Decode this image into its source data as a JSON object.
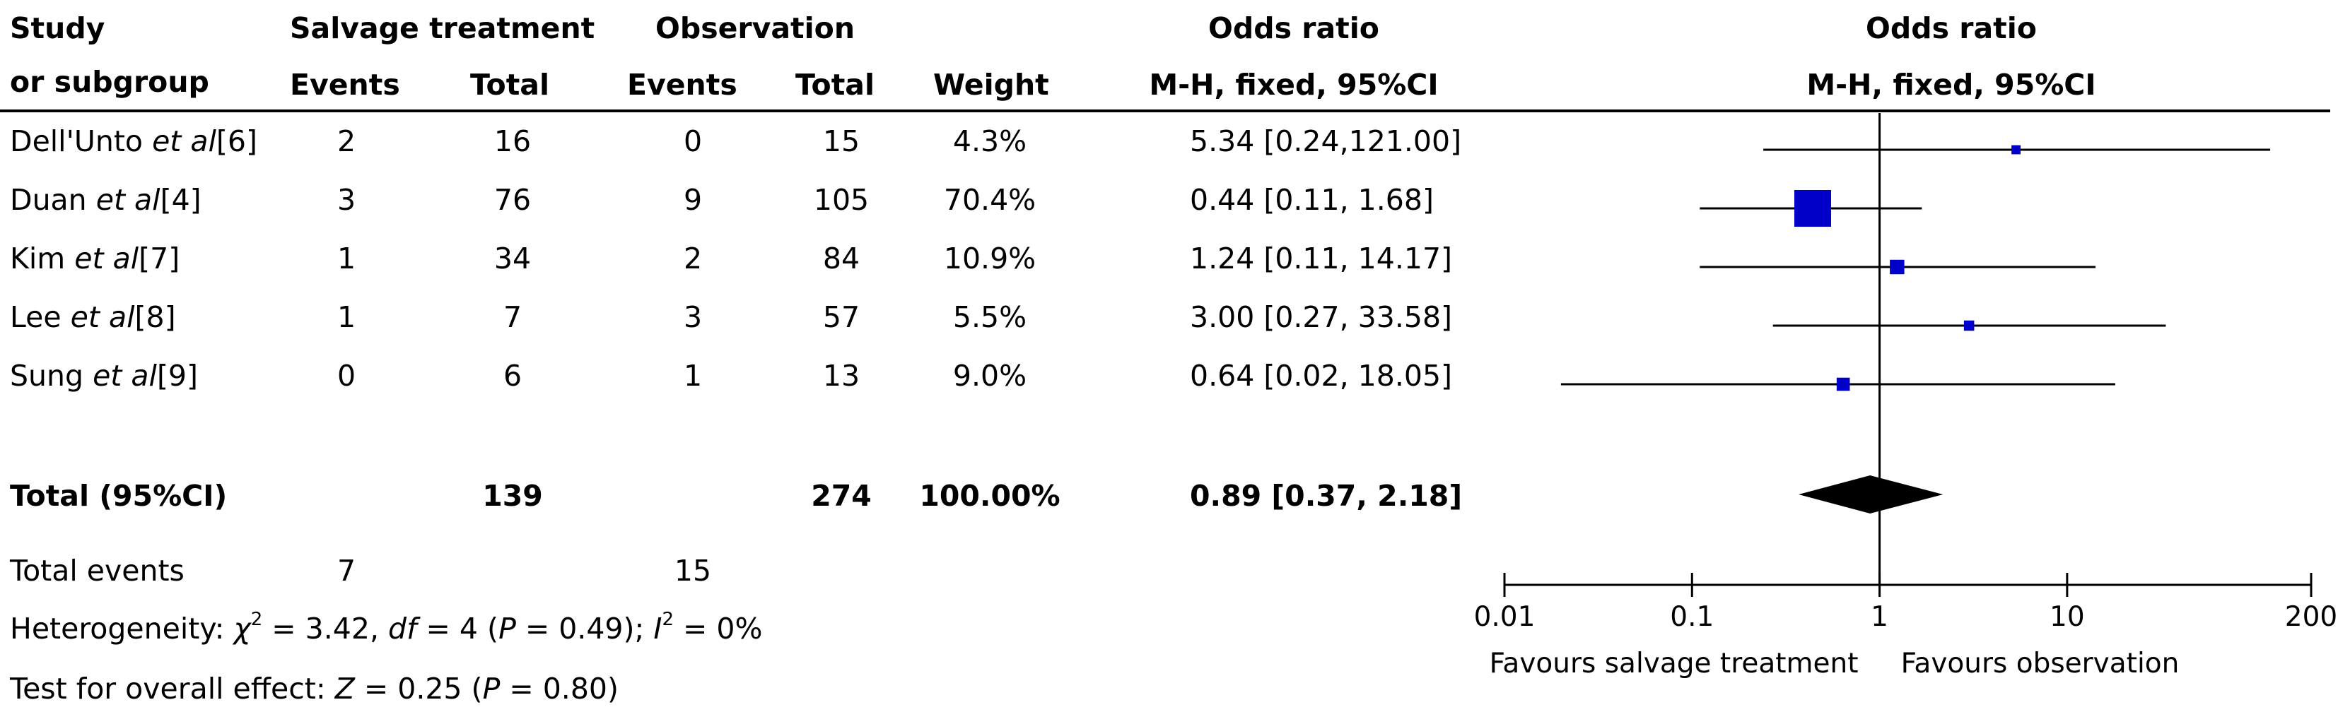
{
  "header": {
    "study_line1": "Study",
    "study_line2": "or subgroup",
    "group1": "Salvage treatment",
    "group2": "Observation",
    "events": "Events",
    "total": "Total",
    "weight": "Weight",
    "or_title": "Odds ratio",
    "or_method": "M-H, fixed, 95%CI",
    "plot_title": "Odds ratio",
    "plot_method": "M-H, fixed, 95%CI"
  },
  "studies": [
    {
      "name": "Dell'Unto",
      "etal": "et al",
      "ref": "[6]",
      "ev1": "2",
      "tot1": "16",
      "ev2": "0",
      "tot2": "15",
      "weight": "4.3%",
      "ci_text": "5.34 [0.24,121.00]"
    },
    {
      "name": "Duan",
      "etal": "et al",
      "ref": "[4]",
      "ev1": "3",
      "tot1": "76",
      "ev2": "9",
      "tot2": "105",
      "weight": "70.4%",
      "ci_text": "0.44 [0.11, 1.68]"
    },
    {
      "name": "Kim",
      "etal": "et al",
      "ref": "[7]",
      "ev1": "1",
      "tot1": "34",
      "ev2": "2",
      "tot2": "84",
      "weight": "10.9%",
      "ci_text": "1.24 [0.11, 14.17]"
    },
    {
      "name": "Lee",
      "etal": "et al",
      "ref": "[8]",
      "ev1": "1",
      "tot1": "7",
      "ev2": "3",
      "tot2": "57",
      "weight": "5.5%",
      "ci_text": "3.00 [0.27, 33.58]"
    },
    {
      "name": "Sung",
      "etal": "et al",
      "ref": "[9]",
      "ev1": "0",
      "tot1": "6",
      "ev2": "1",
      "tot2": "13",
      "weight": "9.0%",
      "ci_text": "0.64 [0.02, 18.05]"
    }
  ],
  "total_row": {
    "label": "Total (95%CI)",
    "tot1": "139",
    "tot2": "274",
    "weight": "100.00%",
    "ci_text": "0.89 [0.37, 2.18]"
  },
  "events_row": {
    "label": "Total events",
    "ev1": "7",
    "ev2": "15"
  },
  "heterogeneity": {
    "prefix": "Heterogeneity: ",
    "chi": "χ",
    "chi_sup": "2",
    "chi_val": " = 3.42, ",
    "df": "df",
    "df_val": " = 4 (",
    "p": "P",
    "p_val": " = 0.49); ",
    "i": "I",
    "i_sup": "2",
    "i_val": " = 0%"
  },
  "overall_effect": {
    "prefix": "Test for overall effect: ",
    "z": "Z",
    "z_val": " = 0.25 (",
    "p": "P",
    "p_val": " = 0.80)"
  },
  "colors": {
    "marker": "#0000c8",
    "line": "#000000"
  },
  "chart_data": {
    "type": "forest",
    "x_scale": "log",
    "xlim": [
      0.01,
      200
    ],
    "x_ticks": [
      0.01,
      0.1,
      1,
      10,
      200
    ],
    "x_tick_labels": [
      "0.01",
      "0.1",
      "1",
      "10",
      "200"
    ],
    "favours_left": "Favours salvage treatment",
    "favours_right": "Favours observation",
    "studies": [
      {
        "study": "Dell'Unto",
        "or": 5.34,
        "lo": 0.24,
        "hi": 121.0,
        "weight": 4.3
      },
      {
        "study": "Duan",
        "or": 0.44,
        "lo": 0.11,
        "hi": 1.68,
        "weight": 70.4
      },
      {
        "study": "Kim",
        "or": 1.24,
        "lo": 0.11,
        "hi": 14.17,
        "weight": 10.9
      },
      {
        "study": "Lee",
        "or": 3.0,
        "lo": 0.27,
        "hi": 33.58,
        "weight": 5.5
      },
      {
        "study": "Sung",
        "or": 0.64,
        "lo": 0.02,
        "hi": 18.05,
        "weight": 9.0
      }
    ],
    "pooled": {
      "or": 0.89,
      "lo": 0.37,
      "hi": 2.18
    }
  }
}
